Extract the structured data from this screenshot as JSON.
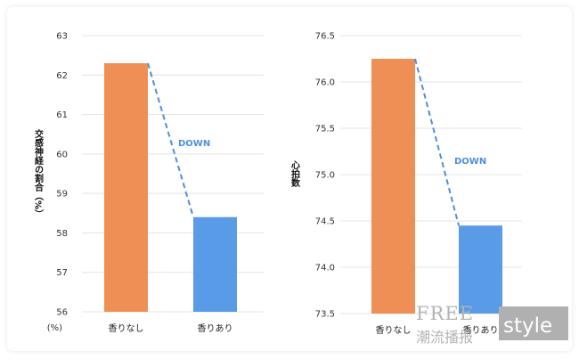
{
  "chart_data": [
    {
      "type": "bar",
      "categories": [
        "香りなし",
        "香りあり"
      ],
      "values": [
        62.3,
        58.4
      ],
      "ylabel": "交感神経の割合（%）",
      "y_unit_label": "(%)",
      "ylim": [
        56,
        63
      ],
      "yticks": [
        "56",
        "57",
        "58",
        "59",
        "60",
        "61",
        "62",
        "63"
      ],
      "annotation": "DOWN",
      "grid": true
    },
    {
      "type": "bar",
      "categories": [
        "香りなし",
        "香りあり"
      ],
      "values": [
        76.25,
        74.45
      ],
      "ylabel": "心拍数",
      "ylim": [
        73.5,
        76.5
      ],
      "yticks": [
        "73.5",
        "74.0",
        "74.5",
        "75.0",
        "75.5",
        "76.0",
        "76.5"
      ],
      "annotation": "DOWN",
      "grid": true
    }
  ],
  "colors": {
    "bar_before": "#ef8f55",
    "bar_after": "#5a9be8",
    "annotation": "#4f8fdc",
    "grid": "#e4e4e4"
  },
  "watermark": {
    "line1": "FREE",
    "line2": "潮流播报",
    "badge": "style"
  }
}
